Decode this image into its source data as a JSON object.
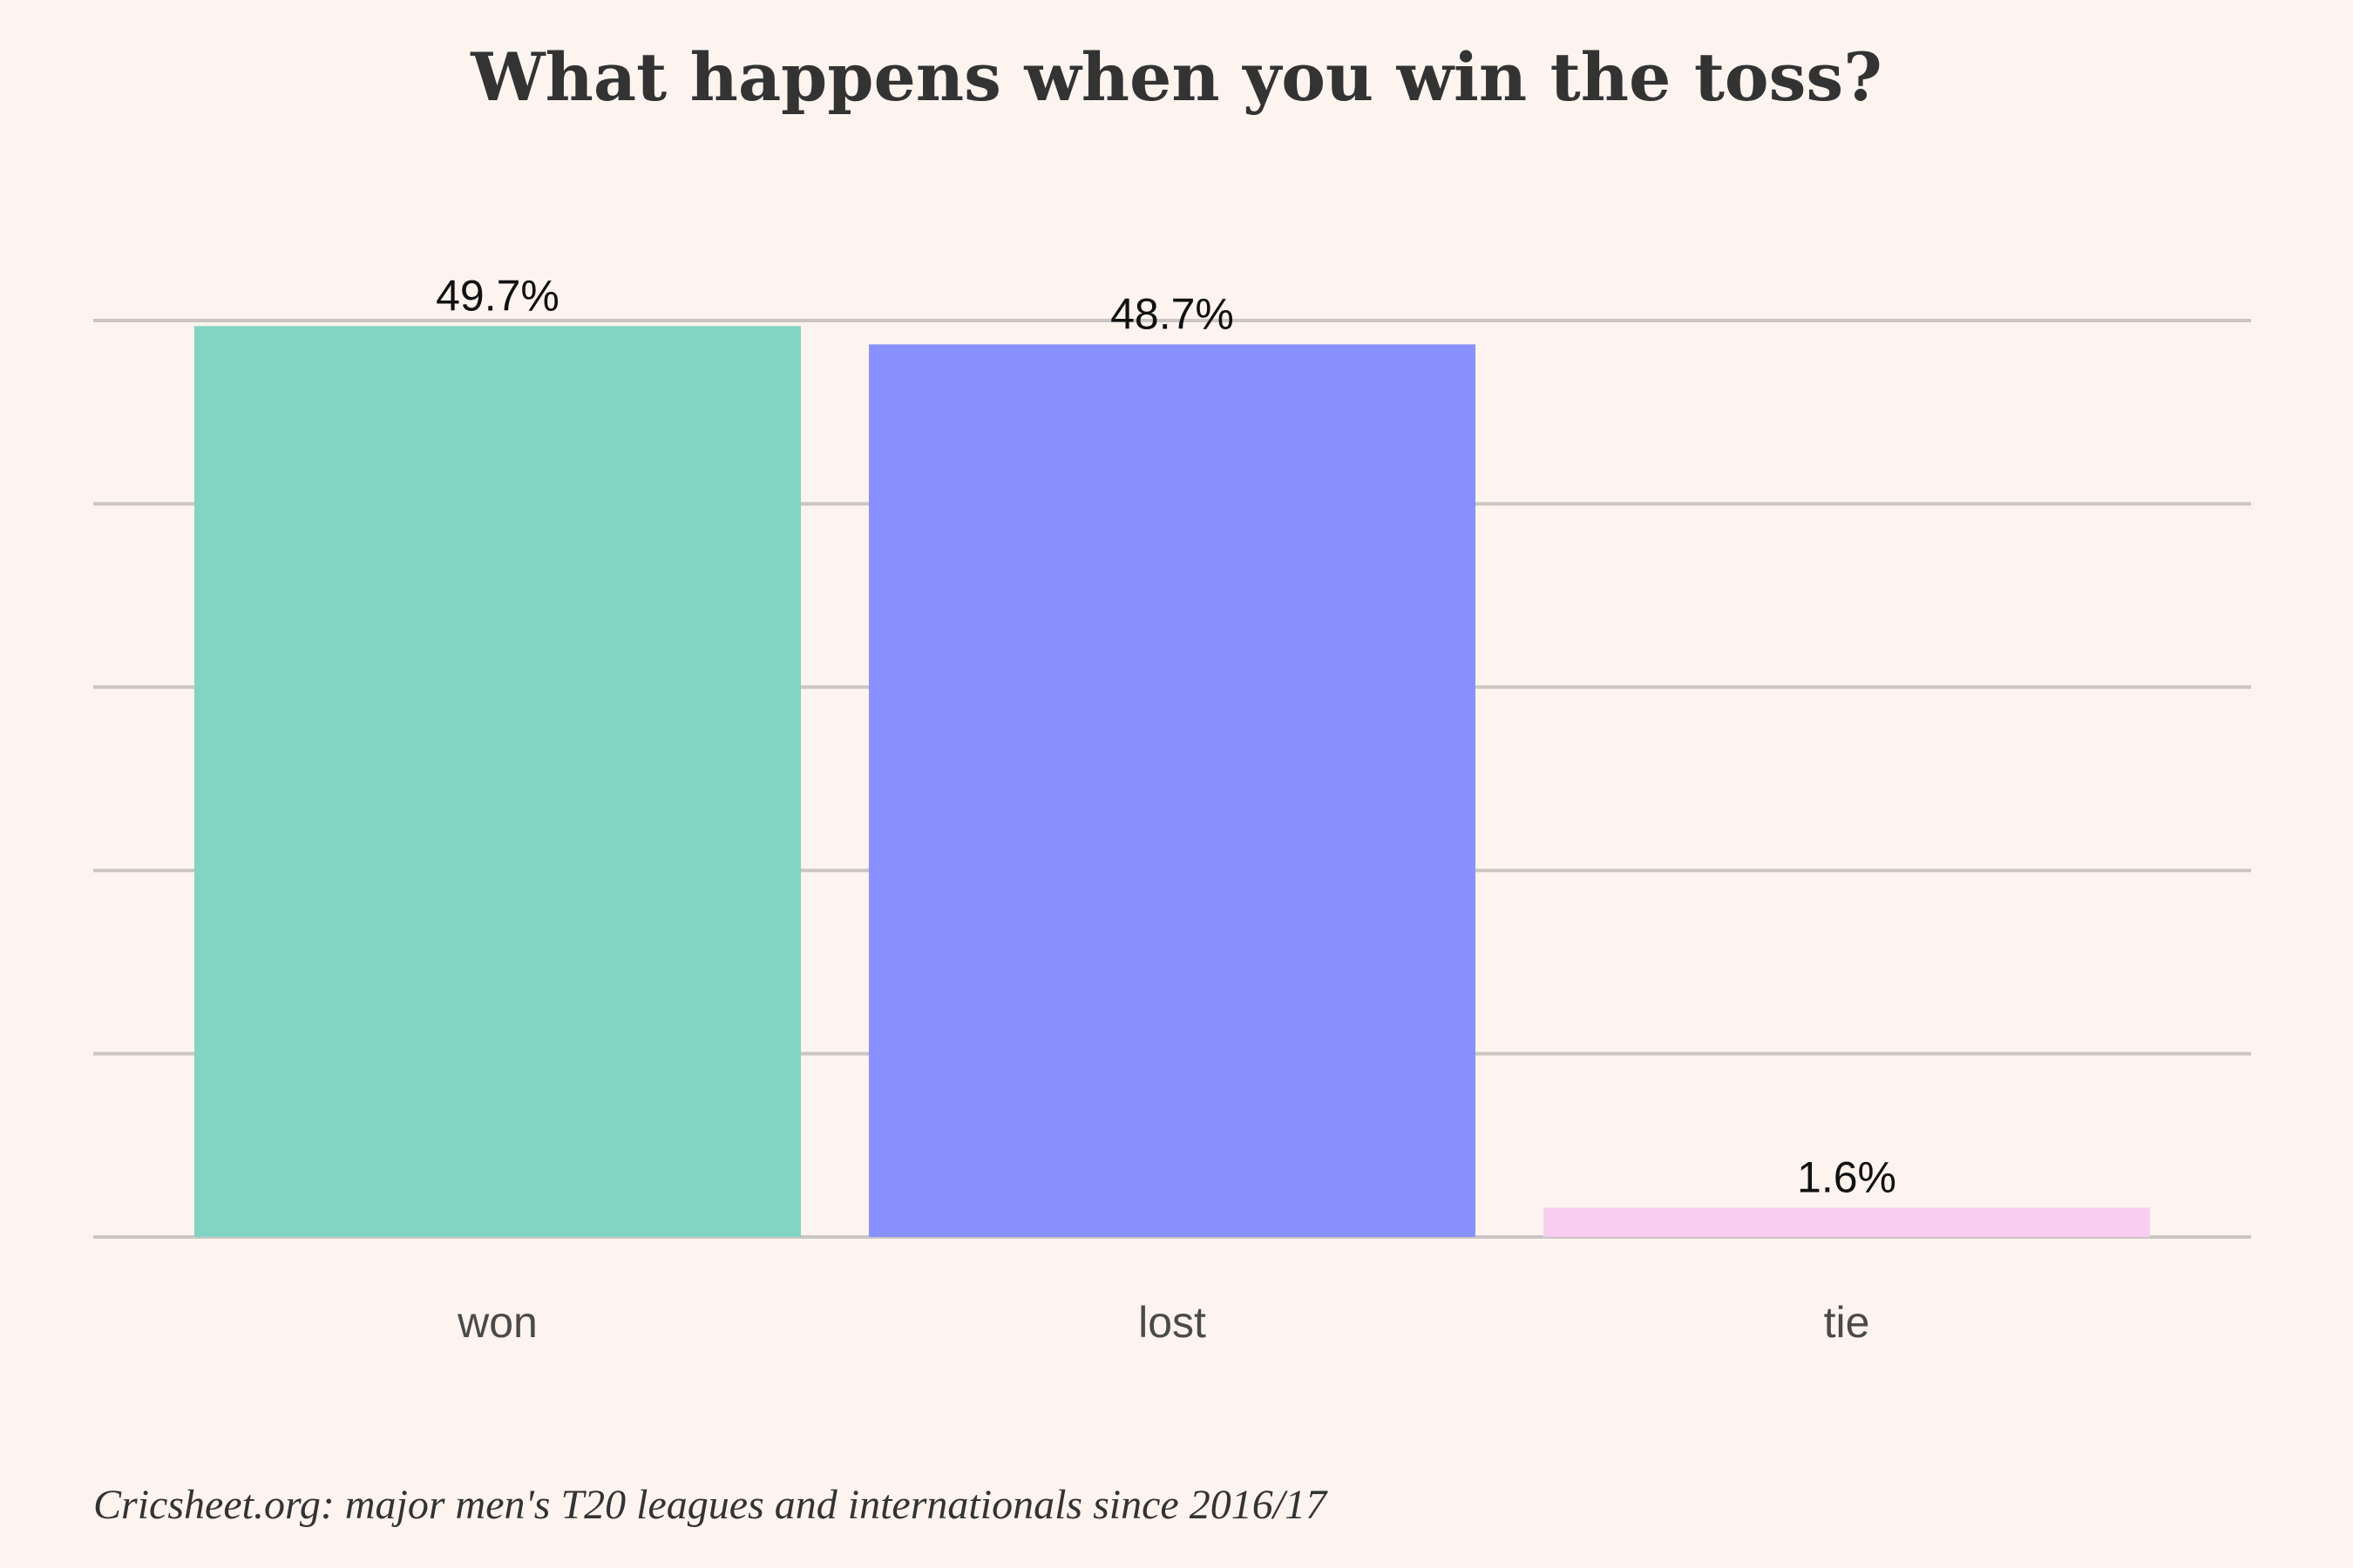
{
  "chart_data": {
    "type": "bar",
    "title": "What happens when you win the toss?",
    "caption": "Cricsheet.org: major men's T20 leagues and internationals since 2016/17",
    "categories": [
      "won",
      "lost",
      "tie"
    ],
    "values": [
      49.7,
      48.7,
      1.6
    ],
    "value_labels": [
      "49.7%",
      "48.7%",
      "1.6%"
    ],
    "colors": [
      "#82d4c3",
      "#8890fd",
      "#f8cdf0"
    ],
    "ylim": [
      0,
      50
    ],
    "grid": true,
    "gridline_count": 6
  }
}
